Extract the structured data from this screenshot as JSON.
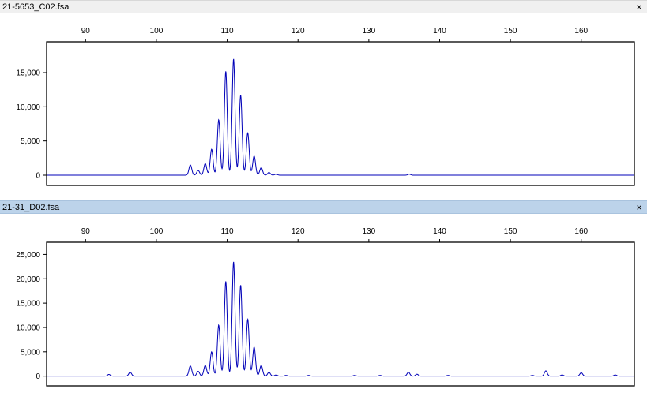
{
  "panels": [
    {
      "title": "21-5653_C02.fsa",
      "close_label": "×",
      "selected": false
    },
    {
      "title": "21-31_D02.fsa",
      "close_label": "×",
      "selected": true
    }
  ],
  "colors": {
    "trace": "#0000b8",
    "axis": "#000000",
    "selected_header": "#bcd3ea"
  },
  "chart_data": [
    {
      "type": "line",
      "xlim": [
        84.5,
        167.5
      ],
      "ylim": [
        -1500,
        19500
      ],
      "x_ticks": [
        90,
        100,
        110,
        120,
        130,
        140,
        150,
        160
      ],
      "x_tick_labels": [
        "90",
        "100",
        "110",
        "120",
        "130",
        "140",
        "150",
        "160"
      ],
      "y_ticks": [
        0,
        5000,
        10000,
        15000
      ],
      "y_tick_labels": [
        "0",
        "5,000",
        "10,000",
        "15,000"
      ],
      "series": [
        {
          "peaks": [
            [
              104.8,
              1500
            ],
            [
              105.9,
              700
            ],
            [
              106.9,
              1700
            ],
            [
              107.8,
              3800
            ],
            [
              108.8,
              8100
            ],
            [
              109.8,
              15200
            ],
            [
              110.9,
              17000
            ],
            [
              111.9,
              11700
            ],
            [
              112.9,
              6200
            ],
            [
              113.8,
              2800
            ],
            [
              114.8,
              1100
            ],
            [
              115.9,
              400
            ],
            [
              116.9,
              150
            ],
            [
              135.7,
              150
            ]
          ]
        }
      ]
    },
    {
      "type": "line",
      "xlim": [
        84.5,
        167.5
      ],
      "ylim": [
        -2000,
        27500
      ],
      "x_ticks": [
        90,
        100,
        110,
        120,
        130,
        140,
        150,
        160
      ],
      "x_tick_labels": [
        "90",
        "100",
        "110",
        "120",
        "130",
        "140",
        "150",
        "160"
      ],
      "y_ticks": [
        0,
        5000,
        10000,
        15000,
        20000,
        25000
      ],
      "y_tick_labels": [
        "0",
        "5,000",
        "10,000",
        "15,000",
        "20,000",
        "25,000"
      ],
      "series": [
        {
          "peaks": [
            [
              93.3,
              350
            ],
            [
              96.3,
              800
            ],
            [
              104.8,
              2100
            ],
            [
              105.9,
              1000
            ],
            [
              106.9,
              2200
            ],
            [
              107.8,
              5000
            ],
            [
              108.8,
              10500
            ],
            [
              109.8,
              19500
            ],
            [
              110.9,
              23500
            ],
            [
              111.9,
              18700
            ],
            [
              112.9,
              11700
            ],
            [
              113.8,
              6000
            ],
            [
              114.8,
              2200
            ],
            [
              115.9,
              800
            ],
            [
              116.9,
              250
            ],
            [
              118.3,
              150
            ],
            [
              121.5,
              150
            ],
            [
              128.0,
              150
            ],
            [
              131.6,
              150
            ],
            [
              135.6,
              800
            ],
            [
              136.8,
              400
            ],
            [
              141.2,
              150
            ],
            [
              153.1,
              150
            ],
            [
              155.0,
              1100
            ],
            [
              157.3,
              250
            ],
            [
              160.0,
              700
            ],
            [
              164.8,
              250
            ]
          ]
        }
      ]
    }
  ]
}
